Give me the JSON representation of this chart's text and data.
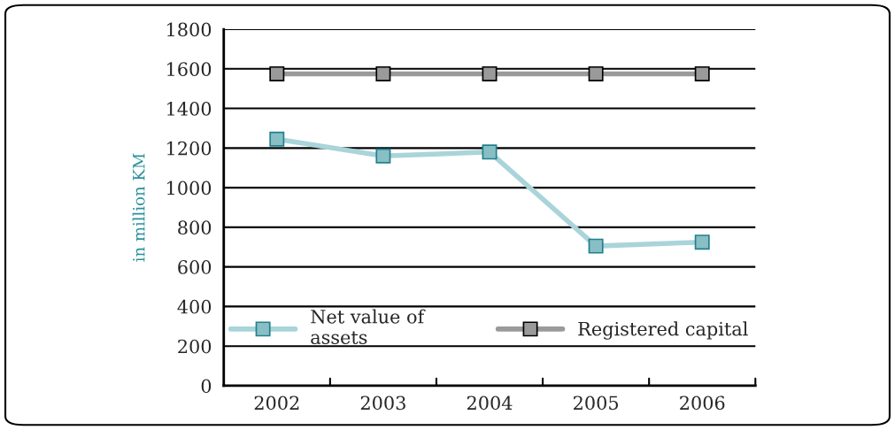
{
  "chart_data": {
    "type": "line",
    "ylabel": "in million KM",
    "categories": [
      "2002",
      "2003",
      "2004",
      "2005",
      "2006"
    ],
    "series": [
      {
        "name": "Net value of\nassets",
        "color": "#a9d4da",
        "values": [
          1245,
          1160,
          1180,
          705,
          725
        ]
      },
      {
        "name": "Registered capital",
        "color": "#9a9a9a",
        "values": [
          1575,
          1575,
          1575,
          1575,
          1575
        ]
      }
    ],
    "ylim": [
      0,
      1800
    ],
    "yticks": [
      0,
      200,
      400,
      600,
      800,
      1000,
      1200,
      1400,
      1600,
      1800
    ],
    "grid": "y",
    "legend": "bottom",
    "marker": "square",
    "line_style": "solid"
  }
}
